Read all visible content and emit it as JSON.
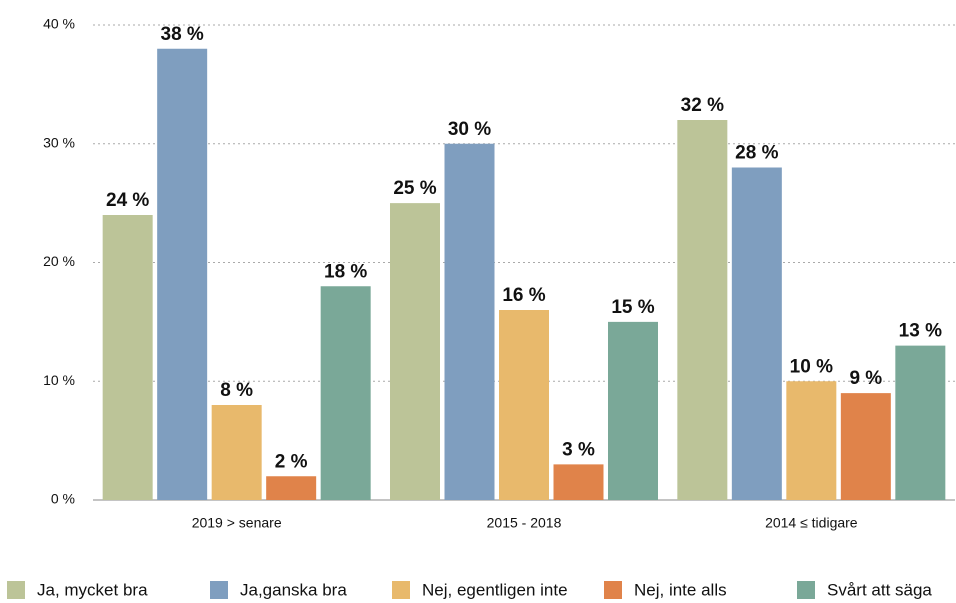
{
  "chart_data": {
    "type": "bar",
    "categories": [
      "2019 > senare",
      "2015 - 2018",
      "2014 ≤ tidigare"
    ],
    "series": [
      {
        "name": "Ja, mycket bra",
        "color": "#bcc498",
        "values": [
          24,
          25,
          32
        ],
        "value_labels": [
          "24 %",
          "25 %",
          "32 %"
        ]
      },
      {
        "name": "Ja,ganska bra",
        "color": "#7f9ebf",
        "values": [
          38,
          30,
          28
        ],
        "value_labels": [
          "38 %",
          "30 %",
          "28 %"
        ]
      },
      {
        "name": "Nej, egentligen inte",
        "color": "#e8b96c",
        "values": [
          8,
          16,
          10
        ],
        "value_labels": [
          "8 %",
          "16 %",
          "10 %"
        ]
      },
      {
        "name": "Nej, inte alls",
        "color": "#e0834a",
        "values": [
          2,
          3,
          9
        ],
        "value_labels": [
          "2 %",
          "3 %",
          "9 %"
        ]
      },
      {
        "name": "Svårt att säga",
        "color": "#7aa898",
        "values": [
          18,
          15,
          13
        ],
        "value_labels": [
          "18 %",
          "15 %",
          "13 %"
        ]
      }
    ],
    "ylim": [
      0,
      40
    ],
    "yticks": [
      {
        "value": 0,
        "label": "0 %"
      },
      {
        "value": 10,
        "label": "10 %"
      },
      {
        "value": 20,
        "label": "20 %"
      },
      {
        "value": 30,
        "label": "30 %"
      },
      {
        "value": 40,
        "label": "40 %"
      }
    ],
    "grid": true,
    "legend": "bottom"
  }
}
